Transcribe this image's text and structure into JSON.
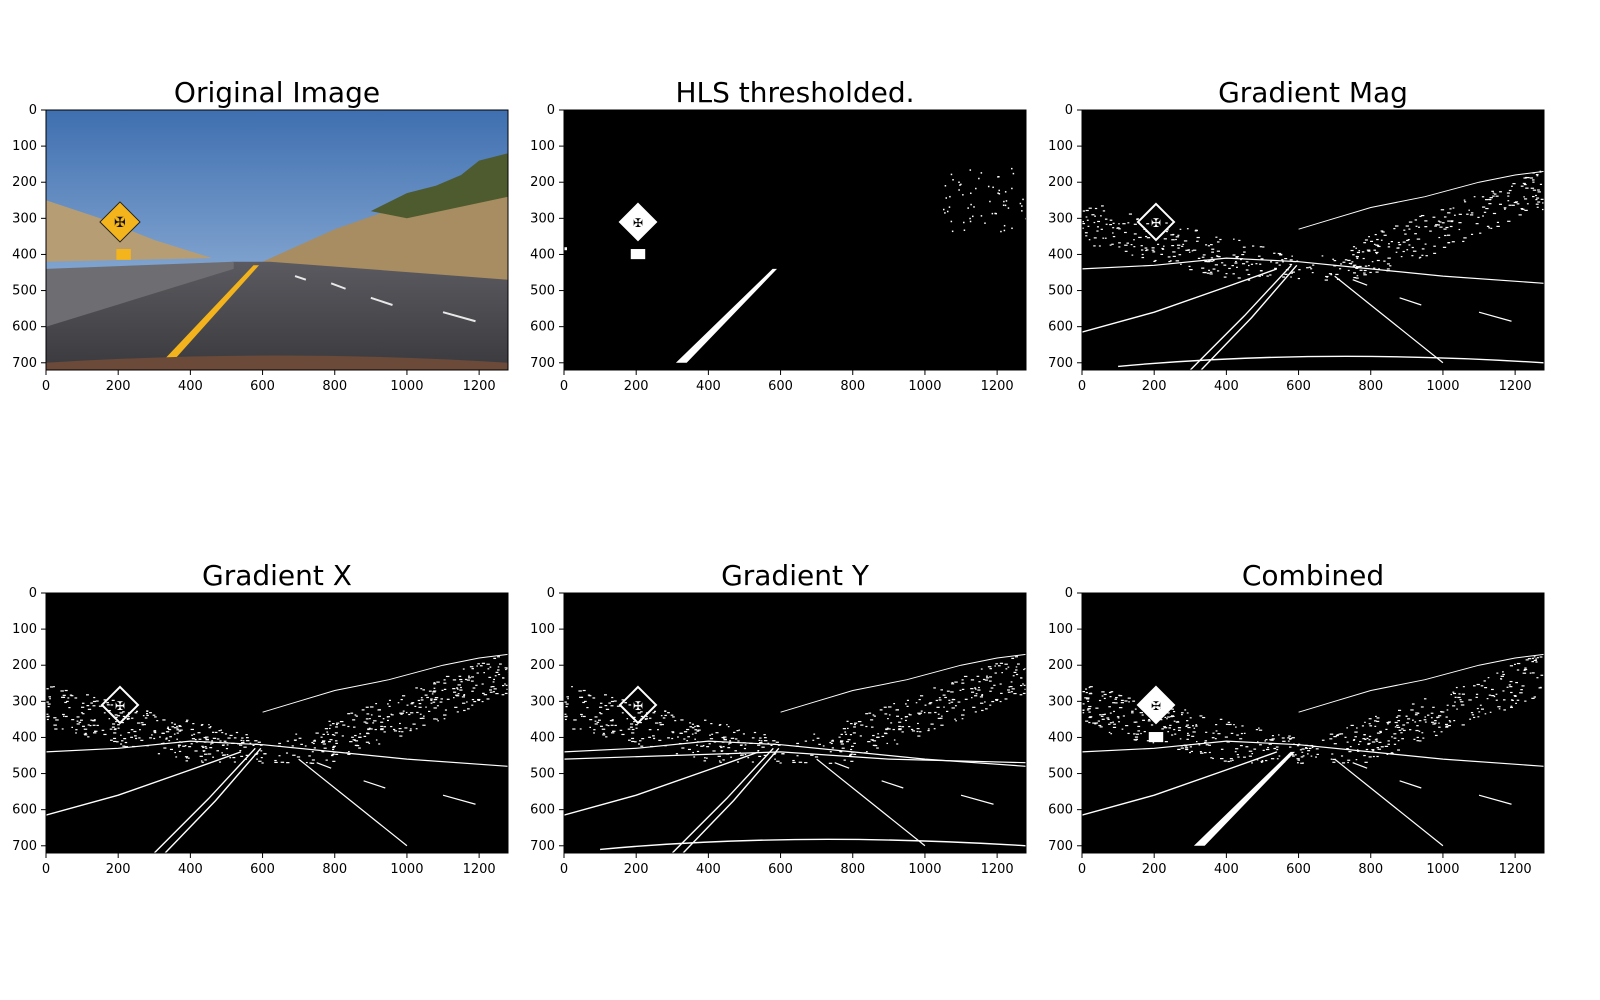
{
  "figure": {
    "panels": [
      {
        "title": "Original Image",
        "kind": "photo",
        "mask": "none"
      },
      {
        "title": "HLS thresholded.",
        "kind": "binary",
        "mask": "hls"
      },
      {
        "title": "Gradient Mag",
        "kind": "binary",
        "mask": "mag"
      },
      {
        "title": "Gradient X",
        "kind": "binary",
        "mask": "gradx"
      },
      {
        "title": "Gradient Y",
        "kind": "binary",
        "mask": "grady"
      },
      {
        "title": "Combined",
        "kind": "binary",
        "mask": "combined"
      }
    ],
    "x_ticks": [
      "0",
      "200",
      "400",
      "600",
      "800",
      "1000",
      "1200"
    ],
    "x_tick_values": [
      0,
      200,
      400,
      600,
      800,
      1000,
      1200
    ],
    "y_ticks": [
      "0",
      "100",
      "200",
      "300",
      "400",
      "500",
      "600",
      "700"
    ],
    "y_tick_values": [
      0,
      100,
      200,
      300,
      400,
      500,
      600,
      700
    ],
    "image_size": {
      "width": 1280,
      "height": 720
    },
    "colors": {
      "sky_top": "#3f6fb0",
      "sky_bottom": "#a9c4e2",
      "road": "#4a4a4f",
      "hill": "#b39a72",
      "lane_yellow": "#f2b31d",
      "sign_yellow": "#f3b41c",
      "mask_bg": "#000000",
      "mask_fg": "#ffffff"
    }
  }
}
